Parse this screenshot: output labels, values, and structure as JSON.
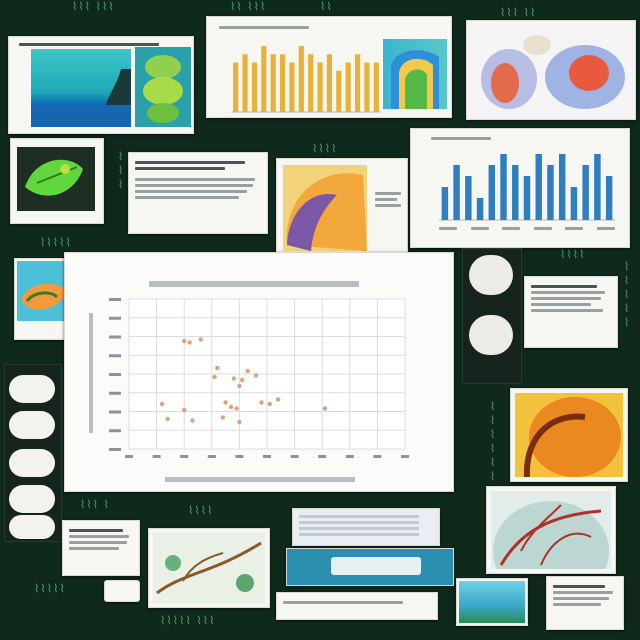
{
  "board": {
    "background": "#0f2a1c",
    "accent_text_color": "#5fb087"
  },
  "chart_data": {
    "type": "scatter",
    "title": "",
    "xlabel": "",
    "ylabel": "",
    "grid": true,
    "series": [
      {
        "color": "#e0a07a",
        "points": [
          {
            "x": 2.0,
            "y": 7.2
          },
          {
            "x": 2.2,
            "y": 7.1
          },
          {
            "x": 2.6,
            "y": 7.3
          },
          {
            "x": 3.2,
            "y": 5.4
          },
          {
            "x": 3.1,
            "y": 4.8
          },
          {
            "x": 3.8,
            "y": 4.7
          },
          {
            "x": 4.1,
            "y": 4.6
          },
          {
            "x": 4.3,
            "y": 5.2
          },
          {
            "x": 4.6,
            "y": 4.9
          },
          {
            "x": 4.0,
            "y": 4.2
          },
          {
            "x": 3.5,
            "y": 3.1
          },
          {
            "x": 3.7,
            "y": 2.8
          },
          {
            "x": 3.9,
            "y": 2.7
          },
          {
            "x": 4.8,
            "y": 3.1
          },
          {
            "x": 5.1,
            "y": 3.0
          },
          {
            "x": 5.4,
            "y": 3.3
          },
          {
            "x": 1.2,
            "y": 3.0
          },
          {
            "x": 2.0,
            "y": 2.6
          },
          {
            "x": 1.4,
            "y": 2.0
          },
          {
            "x": 2.3,
            "y": 1.9
          },
          {
            "x": 3.4,
            "y": 2.1
          },
          {
            "x": 4.0,
            "y": 1.8
          },
          {
            "x": 7.1,
            "y": 2.7
          }
        ]
      }
    ],
    "xlim": [
      0,
      10
    ],
    "ylim": [
      0,
      10
    ]
  },
  "bar_panel_top": {
    "type": "bar",
    "color": "#e8b23a",
    "values": [
      6,
      7,
      6,
      8,
      7,
      7,
      6,
      8,
      7,
      6,
      7,
      5,
      6,
      7,
      6,
      6
    ]
  },
  "bar_panel_right": {
    "type": "bar",
    "color": "#2f7fc0",
    "values": [
      3,
      5,
      4,
      2,
      5,
      6,
      5,
      4,
      6,
      5,
      6,
      3,
      5,
      6,
      4
    ]
  }
}
